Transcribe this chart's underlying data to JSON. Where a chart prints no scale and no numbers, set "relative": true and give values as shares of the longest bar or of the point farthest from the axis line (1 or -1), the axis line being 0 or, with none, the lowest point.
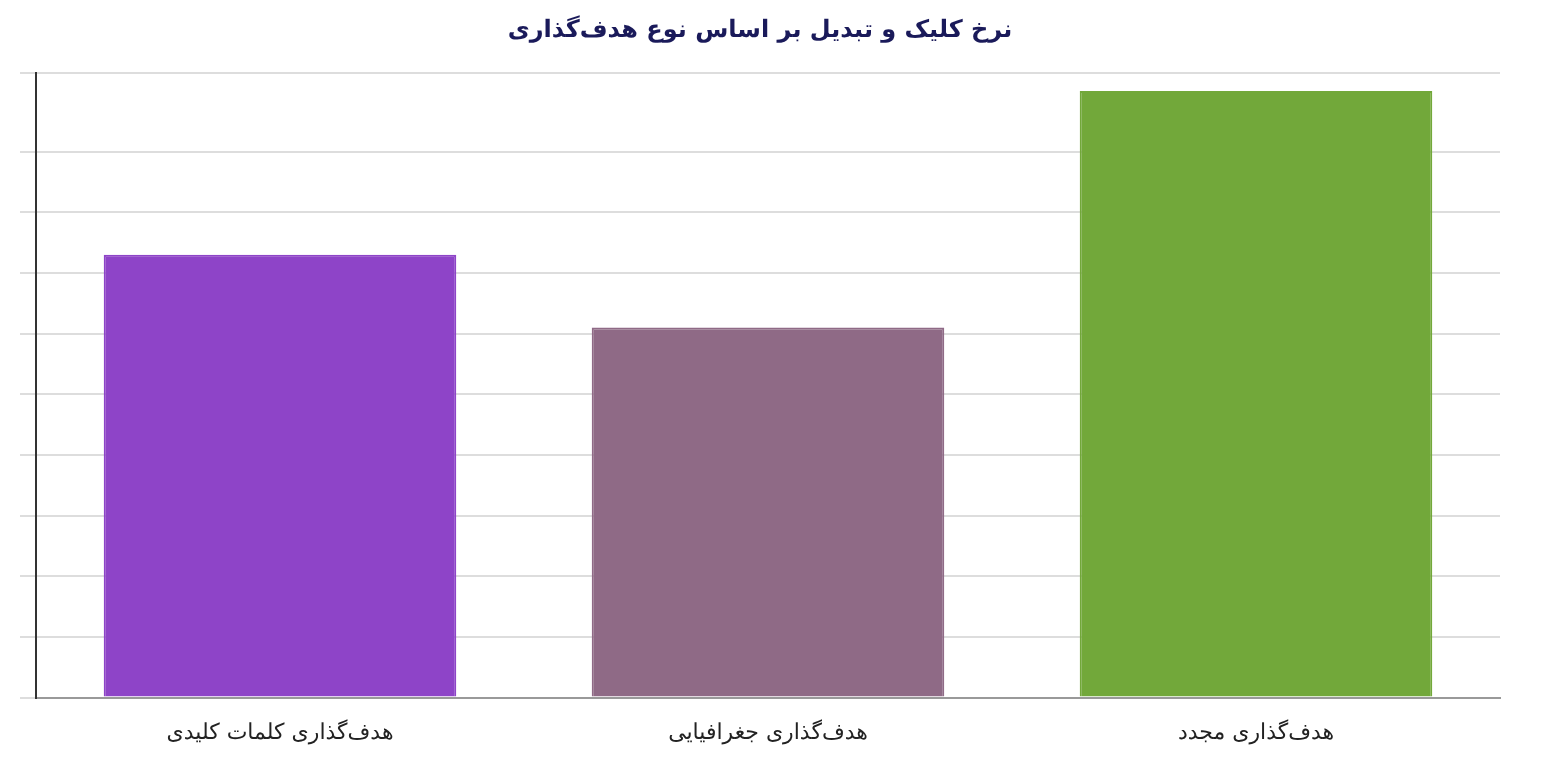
{
  "chart_data": {
    "type": "bar",
    "title": "نرخ کلیک و تبدیل بر اساس نوع هدف‌گذاری",
    "categories": [
      "هدف‌گذاری کلمات کلیدی",
      "هدف‌گذاری جغرافیایی",
      "هدف‌گذاری مجدد"
    ],
    "values": [
      0.73,
      0.61,
      1
    ],
    "colors": [
      "#8e44c8",
      "#8f6a86",
      "#72a83a"
    ],
    "relative": true,
    "grid": "y",
    "legend": false
  }
}
